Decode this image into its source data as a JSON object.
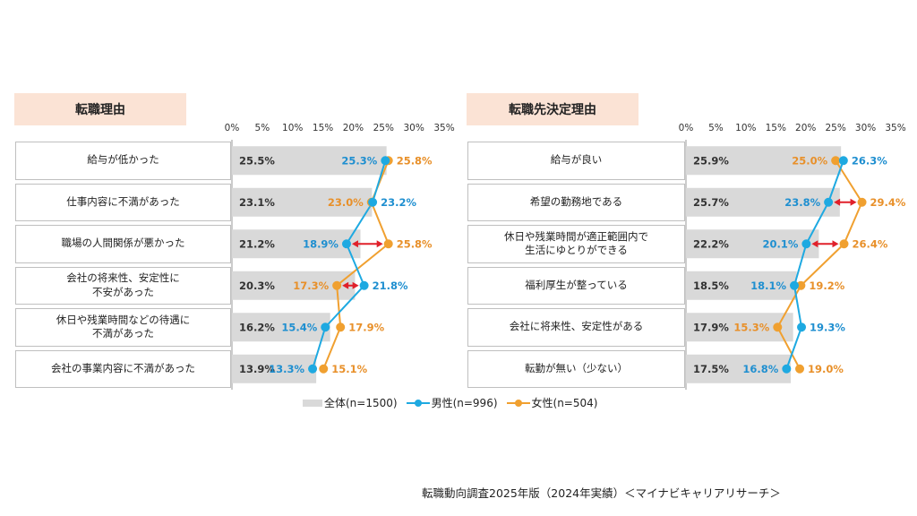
{
  "legend": {
    "overall": "全体(n=1500)",
    "male": "男性(n=996)",
    "female": "女性(n=504)"
  },
  "source": "転職動向調査2025年版（2024年実績）＜マイナビキャリアリサーチ＞",
  "colors": {
    "overall": "#d9d9d9",
    "male": "#1ea9e1",
    "female": "#f0a030",
    "arrow": "#e0202a",
    "male_text": "#1f8fd0",
    "female_text": "#e8902a"
  },
  "chart_data": [
    {
      "type": "bar",
      "title": "転職理由",
      "xlim": [
        0,
        35
      ],
      "ticks": [
        "0%",
        "5%",
        "10%",
        "15%",
        "20%",
        "25%",
        "30%",
        "35%"
      ],
      "categories": [
        "給与が低かった",
        "仕事内容に不満があった",
        "職場の人間関係が悪かった",
        "会社の将来性、安定性に\n不安があった",
        "休日や残業時間などの待遇に\n不満があった",
        "会社の事業内容に不満があった"
      ],
      "series": [
        {
          "name": "全体(n=1500)",
          "values": [
            25.5,
            23.1,
            21.2,
            20.3,
            16.2,
            13.9
          ],
          "labels": [
            "25.5%",
            "23.1%",
            "21.2%",
            "20.3%",
            "16.2%",
            "13.9%"
          ]
        },
        {
          "name": "男性(n=996)",
          "values": [
            25.3,
            23.2,
            18.9,
            21.8,
            15.4,
            13.3
          ],
          "labels": [
            "25.3%",
            "23.2%",
            "18.9%",
            "21.8%",
            "15.4%",
            "13.3%"
          ]
        },
        {
          "name": "女性(n=504)",
          "values": [
            25.8,
            23.0,
            25.8,
            17.3,
            17.9,
            15.1
          ],
          "labels": [
            "25.8%",
            "23.0%",
            "25.8%",
            "17.3%",
            "17.9%",
            "15.1%"
          ]
        }
      ],
      "highlight_rows": [
        2,
        3
      ]
    },
    {
      "type": "bar",
      "title": "転職先決定理由",
      "xlim": [
        0,
        35
      ],
      "ticks": [
        "0%",
        "5%",
        "10%",
        "15%",
        "20%",
        "25%",
        "30%",
        "35%"
      ],
      "categories": [
        "給与が良い",
        "希望の勤務地である",
        "休日や残業時間が適正範囲内で\n生活にゆとりができる",
        "福利厚生が整っている",
        "会社に将来性、安定性がある",
        "転勤が無い（少ない）"
      ],
      "series": [
        {
          "name": "全体(n=1500)",
          "values": [
            25.9,
            25.7,
            22.2,
            18.5,
            17.9,
            17.5
          ],
          "labels": [
            "25.9%",
            "25.7%",
            "22.2%",
            "18.5%",
            "17.9%",
            "17.5%"
          ]
        },
        {
          "name": "男性(n=996)",
          "values": [
            26.3,
            23.8,
            20.1,
            18.1,
            19.3,
            16.8
          ],
          "labels": [
            "26.3%",
            "23.8%",
            "20.1%",
            "18.1%",
            "19.3%",
            "16.8%"
          ]
        },
        {
          "name": "女性(n=504)",
          "values": [
            25.0,
            29.4,
            26.4,
            19.2,
            15.3,
            19.0
          ],
          "labels": [
            "25.0%",
            "29.4%",
            "26.4%",
            "19.2%",
            "15.3%",
            "19.0%"
          ]
        }
      ],
      "highlight_rows": [
        1,
        2
      ]
    }
  ]
}
